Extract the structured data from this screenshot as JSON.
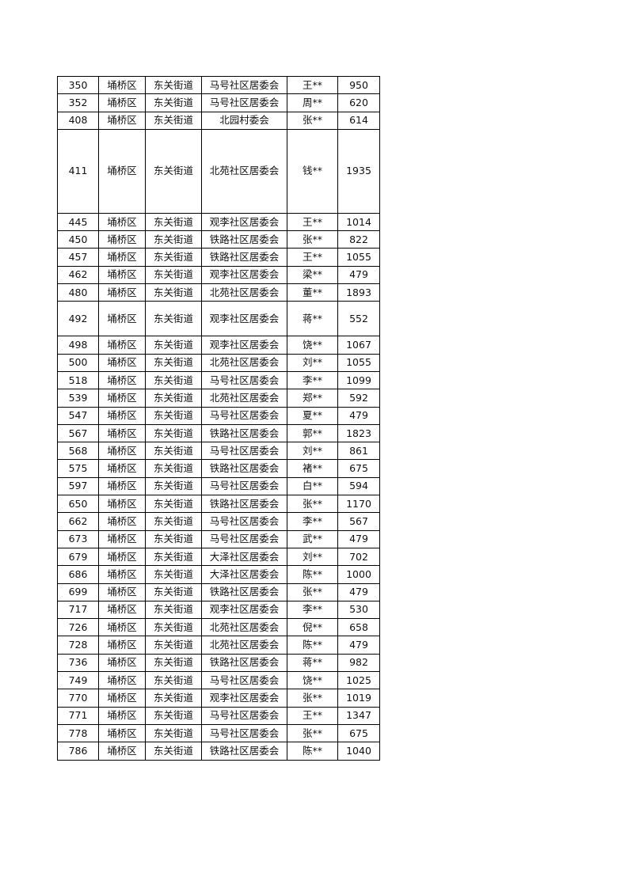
{
  "rows": [
    [
      "350",
      "埇桥区",
      "东关街道",
      "马号社区居委会",
      "王**",
      "950"
    ],
    [
      "352",
      "埇桥区",
      "东关街道",
      "马号社区居委会",
      "周**",
      "620"
    ],
    [
      "408",
      "埇桥区",
      "东关街道",
      "北园村委会",
      "张**",
      "614"
    ],
    [
      "411",
      "埇桥区",
      "东关街道",
      "北苑社区居委会",
      "钱**",
      "1935"
    ],
    [
      "445",
      "埇桥区",
      "东关街道",
      "观李社区居委会",
      "王**",
      "1014"
    ],
    [
      "450",
      "埇桥区",
      "东关街道",
      "铁路社区居委会",
      "张**",
      "822"
    ],
    [
      "457",
      "埇桥区",
      "东关街道",
      "铁路社区居委会",
      "王**",
      "1055"
    ],
    [
      "462",
      "埇桥区",
      "东关街道",
      "观李社区居委会",
      "梁**",
      "479"
    ],
    [
      "480",
      "埇桥区",
      "东关街道",
      "北苑社区居委会",
      "董**",
      "1893"
    ],
    [
      "492",
      "埇桥区",
      "东关街道",
      "观李社区居委会",
      "蒋**",
      "552"
    ],
    [
      "498",
      "埇桥区",
      "东关街道",
      "观李社区居委会",
      "饶**",
      "1067"
    ],
    [
      "500",
      "埇桥区",
      "东关街道",
      "北苑社区居委会",
      "刘**",
      "1055"
    ],
    [
      "518",
      "埇桥区",
      "东关街道",
      "马号社区居委会",
      "李**",
      "1099"
    ],
    [
      "539",
      "埇桥区",
      "东关街道",
      "北苑社区居委会",
      "郑**",
      "592"
    ],
    [
      "547",
      "埇桥区",
      "东关街道",
      "马号社区居委会",
      "夏**",
      "479"
    ],
    [
      "567",
      "埇桥区",
      "东关街道",
      "铁路社区居委会",
      "郭**",
      "1823"
    ],
    [
      "568",
      "埇桥区",
      "东关街道",
      "马号社区居委会",
      "刘**",
      "861"
    ],
    [
      "575",
      "埇桥区",
      "东关街道",
      "铁路社区居委会",
      "褚**",
      "675"
    ],
    [
      "597",
      "埇桥区",
      "东关街道",
      "马号社区居委会",
      "白**",
      "594"
    ],
    [
      "650",
      "埇桥区",
      "东关街道",
      "铁路社区居委会",
      "张**",
      "1170"
    ],
    [
      "662",
      "埇桥区",
      "东关街道",
      "马号社区居委会",
      "李**",
      "567"
    ],
    [
      "673",
      "埇桥区",
      "东关街道",
      "马号社区居委会",
      "武**",
      "479"
    ],
    [
      "679",
      "埇桥区",
      "东关街道",
      "大泽社区居委会",
      "刘**",
      "702"
    ],
    [
      "686",
      "埇桥区",
      "东关街道",
      "大泽社区居委会",
      "陈**",
      "1000"
    ],
    [
      "699",
      "埇桥区",
      "东关街道",
      "铁路社区居委会",
      "张**",
      "479"
    ],
    [
      "717",
      "埇桥区",
      "东关街道",
      "观李社区居委会",
      "李**",
      "530"
    ],
    [
      "726",
      "埇桥区",
      "东关街道",
      "北苑社区居委会",
      "倪**",
      "658"
    ],
    [
      "728",
      "埇桥区",
      "东关街道",
      "北苑社区居委会",
      "陈**",
      "479"
    ],
    [
      "736",
      "埇桥区",
      "东关街道",
      "铁路社区居委会",
      "蒋**",
      "982"
    ],
    [
      "749",
      "埇桥区",
      "东关街道",
      "马号社区居委会",
      "饶**",
      "1025"
    ],
    [
      "770",
      "埇桥区",
      "东关街道",
      "观李社区居委会",
      "张**",
      "1019"
    ],
    [
      "771",
      "埇桥区",
      "东关街道",
      "马号社区居委会",
      "王**",
      "1347"
    ],
    [
      "778",
      "埇桥区",
      "东关街道",
      "马号社区居委会",
      "张**",
      "675"
    ],
    [
      "786",
      "埇桥区",
      "东关街道",
      "铁路社区居委会",
      "陈**",
      "1040"
    ]
  ]
}
